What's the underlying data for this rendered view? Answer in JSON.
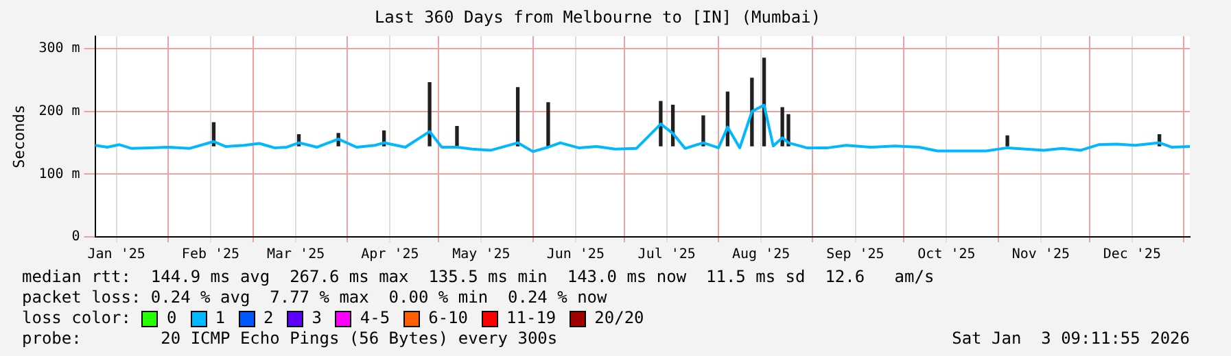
{
  "chart_data": {
    "type": "line",
    "title": "Last 360 Days from Melbourne to [IN] (Mumbai)",
    "ylabel": "Seconds",
    "xlim": [
      "2025-01-08",
      "2026-01-03"
    ],
    "xticks": [
      {
        "value": "2025-01-15",
        "label": "Jan '25"
      },
      {
        "value": "2025-02-01",
        "label": null
      },
      {
        "value": "2025-02-15",
        "label": "Feb '25"
      },
      {
        "value": "2025-03-01",
        "label": null
      },
      {
        "value": "2025-03-15",
        "label": "Mar '25"
      },
      {
        "value": "2025-04-01",
        "label": null
      },
      {
        "value": "2025-04-15",
        "label": "Apr '25"
      },
      {
        "value": "2025-05-01",
        "label": null
      },
      {
        "value": "2025-05-15",
        "label": "May '25"
      },
      {
        "value": "2025-06-01",
        "label": null
      },
      {
        "value": "2025-06-15",
        "label": "Jun '25"
      },
      {
        "value": "2025-07-01",
        "label": null
      },
      {
        "value": "2025-07-15",
        "label": "Jul '25"
      },
      {
        "value": "2025-08-01",
        "label": null
      },
      {
        "value": "2025-08-15",
        "label": "Aug '25"
      },
      {
        "value": "2025-09-01",
        "label": null
      },
      {
        "value": "2025-09-15",
        "label": "Sep '25"
      },
      {
        "value": "2025-10-01",
        "label": null
      },
      {
        "value": "2025-10-15",
        "label": "Oct '25"
      },
      {
        "value": "2025-11-01",
        "label": null
      },
      {
        "value": "2025-11-15",
        "label": "Nov '25"
      },
      {
        "value": "2025-12-01",
        "label": null
      },
      {
        "value": "2025-12-15",
        "label": "Dec '25"
      },
      {
        "value": "2026-01-01",
        "label": null
      }
    ],
    "ylim": [
      0,
      320
    ],
    "yticks": [
      {
        "value": 0,
        "label": "0"
      },
      {
        "value": 100,
        "label": "100 m"
      },
      {
        "value": 200,
        "label": "200 m"
      },
      {
        "value": 300,
        "label": "300 m"
      }
    ],
    "grid": true,
    "legend": "bottom",
    "legend_title": "loss color:",
    "series": [
      {
        "type": "bar",
        "color": "#202020",
        "x": [
          "2025-02-16",
          "2025-03-16",
          "2025-03-29",
          "2025-04-13",
          "2025-04-28",
          "2025-05-07",
          "2025-05-27",
          "2025-06-06",
          "2025-07-13",
          "2025-07-17",
          "2025-07-27",
          "2025-08-04",
          "2025-08-12",
          "2025-08-16",
          "2025-08-22",
          "2025-08-24",
          "2025-11-04",
          "2025-12-24"
        ],
        "base": [
          145,
          145,
          145,
          145,
          145,
          145,
          145,
          145,
          145,
          145,
          145,
          145,
          145,
          145,
          145,
          145,
          145,
          145
        ],
        "values": [
          37,
          18,
          20,
          24,
          101,
          31,
          93,
          69,
          71,
          65,
          48,
          86,
          108,
          140,
          61,
          50,
          16,
          18
        ]
      },
      {
        "color": "#00b8ff",
        "x": [
          "2025-01-08",
          "2025-01-12",
          "2025-01-16",
          "2025-01-20",
          "2025-01-26",
          "2025-02-01",
          "2025-02-08",
          "2025-02-16",
          "2025-02-20",
          "2025-02-26",
          "2025-03-03",
          "2025-03-08",
          "2025-03-12",
          "2025-03-16",
          "2025-03-22",
          "2025-03-29",
          "2025-04-04",
          "2025-04-10",
          "2025-04-13",
          "2025-04-20",
          "2025-04-28",
          "2025-05-02",
          "2025-05-07",
          "2025-05-12",
          "2025-05-18",
          "2025-05-27",
          "2025-06-01",
          "2025-06-06",
          "2025-06-10",
          "2025-06-16",
          "2025-06-22",
          "2025-06-28",
          "2025-07-05",
          "2025-07-13",
          "2025-07-17",
          "2025-07-21",
          "2025-07-27",
          "2025-08-01",
          "2025-08-04",
          "2025-08-08",
          "2025-08-12",
          "2025-08-16",
          "2025-08-19",
          "2025-08-22",
          "2025-08-24",
          "2025-08-30",
          "2025-09-06",
          "2025-09-12",
          "2025-09-20",
          "2025-09-28",
          "2025-10-06",
          "2025-10-12",
          "2025-10-20",
          "2025-10-28",
          "2025-11-04",
          "2025-11-10",
          "2025-11-16",
          "2025-11-22",
          "2025-11-28",
          "2025-12-04",
          "2025-12-10",
          "2025-12-16",
          "2025-12-24",
          "2025-12-28",
          "2026-01-03"
        ],
        "values": [
          146,
          143,
          147,
          141,
          142,
          143,
          141,
          152,
          144,
          146,
          149,
          142,
          143,
          150,
          143,
          156,
          143,
          146,
          150,
          143,
          168,
          143,
          143,
          140,
          138,
          150,
          136,
          143,
          150,
          142,
          144,
          140,
          141,
          180,
          165,
          141,
          150,
          142,
          175,
          142,
          200,
          210,
          145,
          158,
          150,
          142,
          142,
          146,
          143,
          145,
          143,
          137,
          137,
          137,
          142,
          140,
          138,
          141,
          138,
          147,
          148,
          146,
          150,
          143,
          144
        ]
      },
      {
        "name": "0",
        "color": "#26ff00"
      },
      {
        "name": "1",
        "color": "#00b8ff"
      },
      {
        "name": "2",
        "color": "#0059ff"
      },
      {
        "name": "3",
        "color": "#5e00ff"
      },
      {
        "name": "4-5",
        "color": "#ff00ff"
      },
      {
        "name": "6-10",
        "color": "#ff5e00"
      },
      {
        "name": "11-19",
        "color": "#ff0000"
      },
      {
        "name": "20/20",
        "color": "#a10000"
      }
    ],
    "annotations": [
      "median rtt:  144.9 ms avg  267.6 ms max  135.5 ms min  143.0 ms now  11.5 ms sd  12.6   am/s",
      "packet loss: 0.24 % avg  7.77 % max  0.00 % min  0.24 % now",
      "probe:        20 ICMP Echo Pings (56 Bytes) every 300s",
      "Sat Jan  3 09:11:55 2026"
    ]
  }
}
